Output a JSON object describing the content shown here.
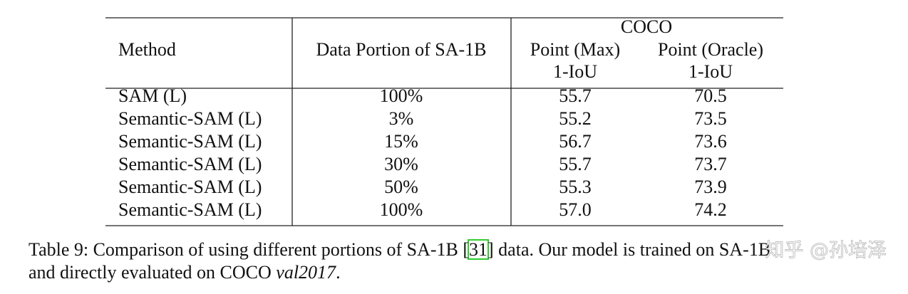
{
  "table": {
    "group": "COCO",
    "columns": [
      {
        "label": "Method"
      },
      {
        "label": "Data Portion of SA-1B"
      },
      {
        "label": "Point (Max)",
        "sub": "1-IoU"
      },
      {
        "label": "Point (Oracle)",
        "sub": "1-IoU"
      }
    ],
    "rows": [
      [
        "SAM (L)",
        "100%",
        "55.7",
        "70.5"
      ],
      [
        "Semantic-SAM (L)",
        "3%",
        "55.2",
        "73.5"
      ],
      [
        "Semantic-SAM (L)",
        "15%",
        "56.7",
        "73.6"
      ],
      [
        "Semantic-SAM (L)",
        "30%",
        "55.7",
        "73.7"
      ],
      [
        "Semantic-SAM (L)",
        "50%",
        "55.3",
        "73.9"
      ],
      [
        "Semantic-SAM (L)",
        "100%",
        "57.0",
        "74.2"
      ]
    ]
  },
  "caption": {
    "lead": "Table 9: Comparison of using different portions of SA-1B [",
    "cite": "31",
    "rest": "] data. Our model is trained on SA-1B",
    "line2": "and directly evaluated on COCO ",
    "dataset": "val2017",
    "end": "."
  },
  "watermark": "知乎 @孙培泽"
}
